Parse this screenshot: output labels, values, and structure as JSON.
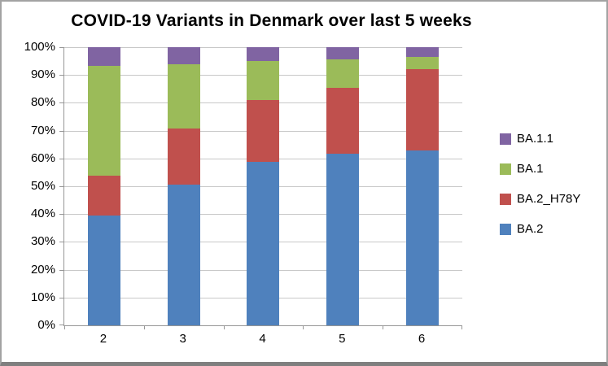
{
  "chart_data": {
    "type": "bar",
    "stacked": true,
    "title": "COVID-19 Variants in Denmark over last 5 weeks",
    "xlabel": "",
    "ylabel": "",
    "categories": [
      "2",
      "3",
      "4",
      "5",
      "6"
    ],
    "series": [
      {
        "name": "BA.2",
        "color": "#4F81BD",
        "values": [
          39.6,
          50.5,
          58.8,
          61.7,
          62.9
        ]
      },
      {
        "name": "BA.2_H78Y",
        "color": "#C0504D",
        "values": [
          14.2,
          20.2,
          22.2,
          23.8,
          29.3
        ]
      },
      {
        "name": "BA.1",
        "color": "#9BBB59",
        "values": [
          39.6,
          23.3,
          14.1,
          10.1,
          4.4
        ]
      },
      {
        "name": "BA.1.1",
        "color": "#8064A2",
        "values": [
          6.6,
          6.0,
          4.9,
          4.4,
          3.4
        ]
      }
    ],
    "y_axis": {
      "min": 0,
      "max": 100,
      "step": 10,
      "tick_labels": [
        "0%",
        "10%",
        "20%",
        "30%",
        "40%",
        "50%",
        "60%",
        "70%",
        "80%",
        "90%",
        "100%"
      ]
    },
    "legend": {
      "position": "right",
      "entries": [
        "BA.1.1",
        "BA.1",
        "BA.2_H78Y",
        "BA.2"
      ]
    },
    "grid": true
  },
  "colors": {
    "background": "#FFFFFF",
    "gridline": "#C8C8C8",
    "axis": "#969696",
    "frame_border": "#A3A3A3",
    "frame_bottom": "#7F7F7F",
    "text": "#000000"
  }
}
